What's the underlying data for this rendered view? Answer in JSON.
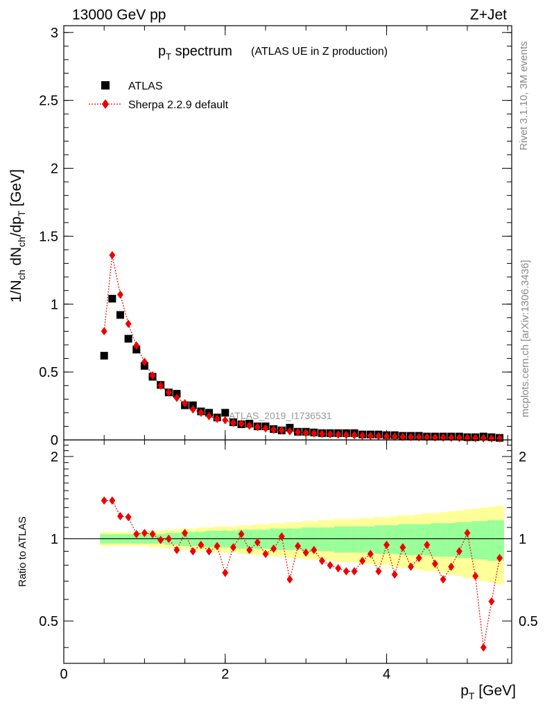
{
  "header": {
    "left": "13000 GeV pp",
    "right": "Z+Jet"
  },
  "side_labels": {
    "rivet": "Rivet 3.1.10,  3M events",
    "mcplots": "mcplots.cern.ch [arXiv:1306.3436]"
  },
  "chart_data": [
    {
      "type": "scatter",
      "title_main": "p",
      "title_sub": "T",
      "title_tail": " spectrum",
      "title_note": "(ATLAS UE in Z production)",
      "watermark": "ATLAS_2019_I1736531",
      "ylabel": "1/N_ch dN_ch/dp_T [GeV]",
      "ylim": [
        0,
        3.05
      ],
      "yticks": [
        0,
        0.5,
        1,
        1.5,
        2,
        2.5,
        3
      ],
      "ytick_labels": [
        "0",
        "0.5",
        "1",
        "1.5",
        "2",
        "2.5",
        "3"
      ],
      "xlim": [
        0,
        5.55
      ],
      "legend_position": "top-left",
      "x": [
        0.5,
        0.6,
        0.7,
        0.8,
        0.9,
        1.0,
        1.1,
        1.2,
        1.3,
        1.4,
        1.5,
        1.6,
        1.7,
        1.8,
        1.9,
        2.0,
        2.1,
        2.2,
        2.3,
        2.4,
        2.5,
        2.6,
        2.7,
        2.8,
        2.9,
        3.0,
        3.1,
        3.2,
        3.3,
        3.4,
        3.5,
        3.6,
        3.7,
        3.8,
        3.9,
        4.0,
        4.1,
        4.2,
        4.3,
        4.4,
        4.5,
        4.6,
        4.7,
        4.8,
        4.9,
        5.0,
        5.1,
        5.2,
        5.3,
        5.4
      ],
      "series": [
        {
          "name": "ATLAS",
          "color": "#000000",
          "values": [
            0.62,
            1.04,
            0.92,
            0.745,
            0.665,
            0.545,
            0.465,
            0.405,
            0.35,
            0.34,
            0.255,
            0.255,
            0.21,
            0.2,
            0.165,
            0.2,
            0.13,
            0.115,
            0.12,
            0.1,
            0.1,
            0.08,
            0.07,
            0.09,
            0.06,
            0.06,
            0.055,
            0.05,
            0.05,
            0.05,
            0.05,
            0.05,
            0.04,
            0.04,
            0.04,
            0.035,
            0.035,
            0.03,
            0.03,
            0.03,
            0.025,
            0.025,
            0.025,
            0.025,
            0.025,
            0.02,
            0.02,
            0.025,
            0.02,
            0.015
          ]
        },
        {
          "name": "Sherpa 2.2.9 default",
          "color": "#ee0000",
          "values": [
            0.8,
            1.36,
            1.07,
            0.855,
            0.695,
            0.575,
            0.475,
            0.4,
            0.35,
            0.31,
            0.27,
            0.225,
            0.2,
            0.175,
            0.155,
            0.145,
            0.125,
            0.12,
            0.105,
            0.095,
            0.085,
            0.075,
            0.07,
            0.063,
            0.057,
            0.052,
            0.048,
            0.045,
            0.042,
            0.039,
            0.037,
            0.035,
            0.032,
            0.03,
            0.028,
            0.026,
            0.024,
            0.022,
            0.021,
            0.02,
            0.019,
            0.018,
            0.017,
            0.016,
            0.015,
            0.014,
            0.013,
            0.012,
            0.011,
            0.01
          ]
        }
      ]
    },
    {
      "type": "scatter",
      "ylabel": "Ratio to ATLAS",
      "xlabel_main": "p",
      "xlabel_sub": "T",
      "xlabel_tail": " [GeV]",
      "xlim": [
        0,
        5.55
      ],
      "xticks": [
        0,
        2,
        4
      ],
      "xtick_labels": [
        "0",
        "2",
        "4"
      ],
      "ylim": [
        0.35,
        2.3
      ],
      "yticks": [
        0.5,
        1,
        2
      ],
      "ytick_labels": [
        "0.5",
        "1",
        "2"
      ],
      "reference_line": 1,
      "band_colors": {
        "inner": "#99ff99",
        "outer": "#ffff99"
      },
      "x": [
        0.5,
        0.6,
        0.7,
        0.8,
        0.9,
        1.0,
        1.1,
        1.2,
        1.3,
        1.4,
        1.5,
        1.6,
        1.7,
        1.8,
        1.9,
        2.0,
        2.1,
        2.2,
        2.3,
        2.4,
        2.5,
        2.6,
        2.7,
        2.8,
        2.9,
        3.0,
        3.1,
        3.2,
        3.3,
        3.4,
        3.5,
        3.6,
        3.7,
        3.8,
        3.9,
        4.0,
        4.1,
        4.2,
        4.3,
        4.4,
        4.5,
        4.6,
        4.7,
        4.8,
        4.9,
        5.0,
        5.1,
        5.2,
        5.3,
        5.4
      ],
      "band_inner": [
        0.04,
        0.04,
        0.04,
        0.04,
        0.04,
        0.04,
        0.04,
        0.04,
        0.05,
        0.05,
        0.06,
        0.06,
        0.06,
        0.07,
        0.07,
        0.07,
        0.07,
        0.08,
        0.08,
        0.08,
        0.08,
        0.09,
        0.09,
        0.09,
        0.09,
        0.1,
        0.1,
        0.1,
        0.1,
        0.11,
        0.11,
        0.11,
        0.11,
        0.11,
        0.12,
        0.12,
        0.12,
        0.13,
        0.13,
        0.13,
        0.13,
        0.14,
        0.14,
        0.14,
        0.15,
        0.15,
        0.16,
        0.16,
        0.17,
        0.17
      ],
      "band_outer": [
        0.06,
        0.06,
        0.06,
        0.06,
        0.06,
        0.06,
        0.07,
        0.07,
        0.08,
        0.08,
        0.09,
        0.09,
        0.1,
        0.1,
        0.11,
        0.11,
        0.11,
        0.12,
        0.12,
        0.13,
        0.13,
        0.14,
        0.14,
        0.15,
        0.15,
        0.16,
        0.16,
        0.17,
        0.17,
        0.18,
        0.18,
        0.18,
        0.19,
        0.19,
        0.2,
        0.2,
        0.21,
        0.22,
        0.22,
        0.23,
        0.24,
        0.24,
        0.25,
        0.26,
        0.27,
        0.28,
        0.29,
        0.3,
        0.31,
        0.32
      ],
      "series": [
        {
          "name": "Sherpa 2.2.9 default",
          "color": "#ee0000",
          "values": [
            1.38,
            1.38,
            1.21,
            1.2,
            1.04,
            1.05,
            1.04,
            0.99,
            1.0,
            0.91,
            1.05,
            0.9,
            0.95,
            0.9,
            0.94,
            0.75,
            0.93,
            1.04,
            0.91,
            0.97,
            0.88,
            0.92,
            1.02,
            0.71,
            0.94,
            0.89,
            0.91,
            0.83,
            0.8,
            0.78,
            0.76,
            0.76,
            0.83,
            0.88,
            0.76,
            0.95,
            0.74,
            0.93,
            0.79,
            0.85,
            0.95,
            0.81,
            0.71,
            0.79,
            0.9,
            1.05,
            0.73,
            0.4,
            0.59,
            0.85
          ]
        }
      ]
    }
  ]
}
